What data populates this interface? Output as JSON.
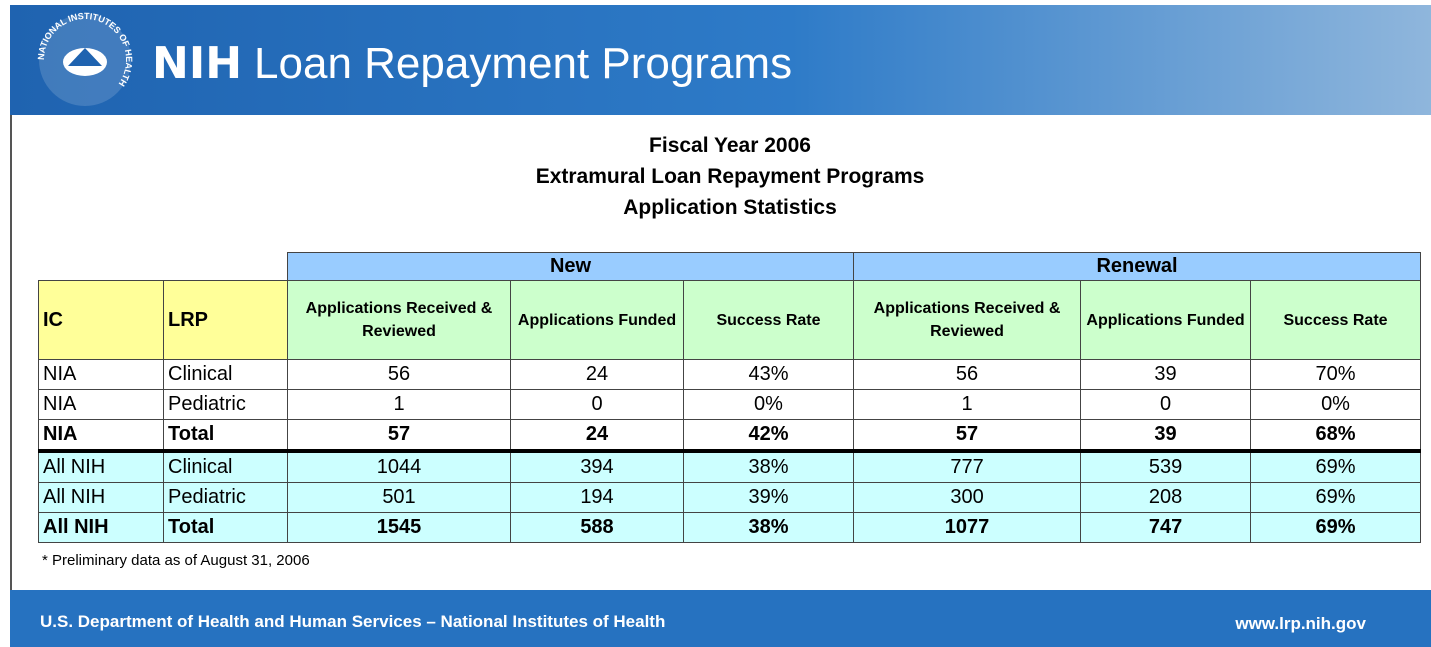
{
  "header": {
    "logo_text": "NATIONAL INSTITUTES OF HEALTH",
    "brand": "NIH",
    "title": "Loan Repayment Programs"
  },
  "heading": [
    "Fiscal Year 2006",
    "Extramural Loan Repayment Programs",
    "Application Statistics"
  ],
  "table": {
    "groups": [
      "New",
      "Renewal"
    ],
    "columns": [
      "IC",
      "LRP",
      "Applications Received & Reviewed",
      "Applications Funded",
      "Success Rate",
      "Applications Received & Reviewed",
      "Applications Funded",
      "Success Rate"
    ],
    "rows": [
      [
        "NIA",
        "Clinical",
        "56",
        "24",
        "43%",
        "56",
        "39",
        "70%"
      ],
      [
        "NIA",
        "Pediatric",
        "1",
        "0",
        "0%",
        "1",
        "0",
        "0%"
      ],
      [
        "NIA",
        "Total",
        "57",
        "24",
        "42%",
        "57",
        "39",
        "68%"
      ],
      [
        "All NIH",
        "Clinical",
        "1044",
        "394",
        "38%",
        "777",
        "539",
        "69%"
      ],
      [
        "All NIH",
        "Pediatric",
        "501",
        "194",
        "39%",
        "300",
        "208",
        "69%"
      ],
      [
        "All NIH",
        "Total",
        "1545",
        "588",
        "38%",
        "1077",
        "747",
        "69%"
      ]
    ]
  },
  "footnote": "* Preliminary data as of August 31, 2006",
  "footer": {
    "left": "U.S. Department of Health and Human Services – National Institutes of Health",
    "right": "www.lrp.nih.gov"
  }
}
